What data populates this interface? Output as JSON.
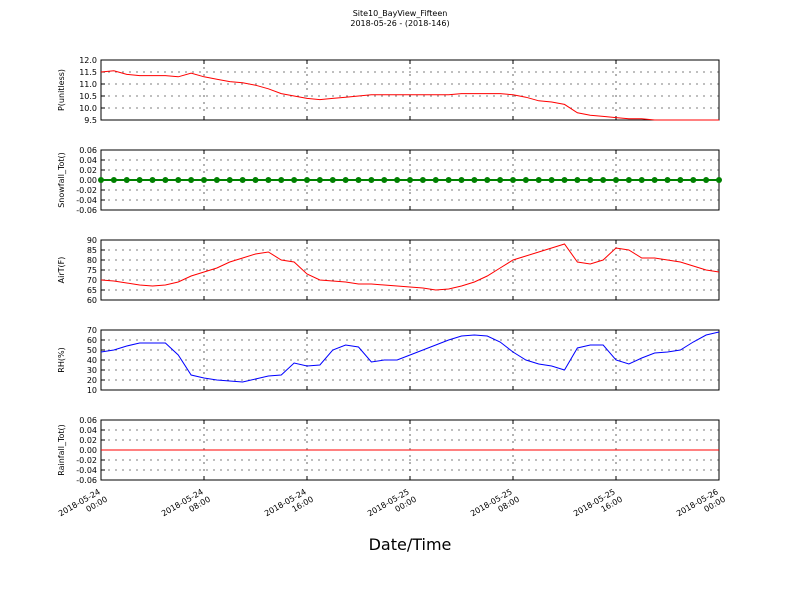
{
  "chart_data": {
    "type": "line",
    "title": "Site10_BayView_Fifteen",
    "subtitle": "2018-05-26 - (2018-146)",
    "xlabel": "Date/Time",
    "grid": true,
    "x": [
      "2018-05-24 00:00",
      "2018-05-24 01:00",
      "2018-05-24 02:00",
      "2018-05-24 03:00",
      "2018-05-24 04:00",
      "2018-05-24 05:00",
      "2018-05-24 06:00",
      "2018-05-24 07:00",
      "2018-05-24 08:00",
      "2018-05-24 09:00",
      "2018-05-24 10:00",
      "2018-05-24 11:00",
      "2018-05-24 12:00",
      "2018-05-24 13:00",
      "2018-05-24 14:00",
      "2018-05-24 15:00",
      "2018-05-24 16:00",
      "2018-05-24 17:00",
      "2018-05-24 18:00",
      "2018-05-24 19:00",
      "2018-05-24 20:00",
      "2018-05-24 21:00",
      "2018-05-24 22:00",
      "2018-05-24 23:00",
      "2018-05-25 00:00",
      "2018-05-25 01:00",
      "2018-05-25 02:00",
      "2018-05-25 03:00",
      "2018-05-25 04:00",
      "2018-05-25 05:00",
      "2018-05-25 06:00",
      "2018-05-25 07:00",
      "2018-05-25 08:00",
      "2018-05-25 09:00",
      "2018-05-25 10:00",
      "2018-05-25 11:00",
      "2018-05-25 12:00",
      "2018-05-25 13:00",
      "2018-05-25 14:00",
      "2018-05-25 15:00",
      "2018-05-25 16:00",
      "2018-05-25 17:00",
      "2018-05-25 18:00",
      "2018-05-25 19:00",
      "2018-05-25 20:00",
      "2018-05-25 21:00",
      "2018-05-25 22:00",
      "2018-05-25 23:00",
      "2018-05-26 00:00"
    ],
    "xlim": [
      "2018-05-24 00:00",
      "2018-05-26 00:00"
    ],
    "xticks": [
      "2018-05-24 00:00",
      "2018-05-24 08:00",
      "2018-05-24 16:00",
      "2018-05-25 00:00",
      "2018-05-25 08:00",
      "2018-05-25 16:00",
      "2018-05-26 00:00"
    ],
    "panels": [
      {
        "ylabel": "P(unitless)",
        "ylim": [
          9.5,
          12.0
        ],
        "yticks": [
          9.5,
          {
            "value": 10,
            "label": "10.0"
          },
          10.5,
          {
            "value": 11,
            "label": "11.0"
          },
          11.5,
          {
            "value": 12,
            "label": "12.0"
          }
        ],
        "series": [
          {
            "color": "#ff0000",
            "values": [
              11.5,
              11.55,
              11.4,
              11.35,
              11.35,
              11.35,
              11.3,
              11.45,
              11.3,
              11.2,
              11.1,
              11.05,
              10.95,
              10.8,
              10.6,
              10.5,
              10.4,
              10.35,
              10.4,
              10.45,
              10.5,
              10.55,
              10.55,
              10.55,
              10.55,
              10.55,
              10.55,
              10.55,
              10.6,
              10.6,
              10.6,
              10.6,
              10.55,
              10.45,
              10.3,
              10.25,
              10.15,
              9.8,
              9.7,
              9.65,
              9.6,
              9.55,
              9.55,
              9.5,
              9.5,
              9.5,
              9.5,
              9.5,
              9.5
            ]
          }
        ]
      },
      {
        "ylabel": "Snowfall_Tot()",
        "ylim": [
          -0.06,
          0.06
        ],
        "yticks": [
          -0.06,
          -0.04,
          -0.02,
          {
            "value": 0,
            "label": "0.00"
          },
          0.02,
          0.04,
          0.06
        ],
        "series": [
          {
            "color": "#008000",
            "markers": true,
            "values": [
              0,
              0,
              0,
              0,
              0,
              0,
              0,
              0,
              0,
              0,
              0,
              0,
              0,
              0,
              0,
              0,
              0,
              0,
              0,
              0,
              0,
              0,
              0,
              0,
              0,
              0,
              0,
              0,
              0,
              0,
              0,
              0,
              0,
              0,
              0,
              0,
              0,
              0,
              0,
              0,
              0,
              0,
              0,
              0,
              0,
              0,
              0,
              0,
              0
            ]
          }
        ]
      },
      {
        "ylabel": "AirT(F)",
        "ylim": [
          60,
          90
        ],
        "yticks": [
          60,
          65,
          70,
          75,
          80,
          85,
          90
        ],
        "series": [
          {
            "color": "#ff0000",
            "values": [
              70,
              69.5,
              68.5,
              67.5,
              67,
              67.5,
              69,
              72,
              74,
              76,
              79,
              81,
              83,
              84,
              80,
              79,
              73,
              70,
              69.5,
              69,
              68,
              68,
              67.5,
              67,
              66.5,
              66,
              65,
              65.5,
              67,
              69,
              72,
              76,
              80,
              82,
              84,
              86,
              88,
              79,
              78,
              80,
              86,
              85,
              81,
              81,
              80,
              79,
              77,
              75,
              74
            ]
          }
        ]
      },
      {
        "ylabel": "RH(%)",
        "ylim": [
          10,
          70
        ],
        "yticks": [
          10,
          20,
          30,
          40,
          50,
          60,
          70
        ],
        "series": [
          {
            "color": "#0000ff",
            "values": [
              48,
              50,
              54,
              57,
              57,
              57,
              45,
              25,
              22,
              20,
              19,
              18,
              21,
              24,
              25,
              37,
              34,
              35,
              50,
              55,
              53,
              38,
              40,
              40,
              45,
              50,
              55,
              60,
              64,
              65,
              64,
              58,
              48,
              40,
              36,
              34,
              30,
              52,
              55,
              55,
              40,
              36,
              42,
              47,
              48,
              50,
              58,
              65,
              68
            ]
          }
        ]
      },
      {
        "ylabel": "Rainfall_Tot()",
        "ylim": [
          -0.06,
          0.06
        ],
        "yticks": [
          -0.06,
          -0.04,
          -0.02,
          {
            "value": 0,
            "label": "0.00"
          },
          0.02,
          0.04,
          0.06
        ],
        "series": [
          {
            "color": "#ff0000",
            "values": [
              0,
              0,
              0,
              0,
              0,
              0,
              0,
              0,
              0,
              0,
              0,
              0,
              0,
              0,
              0,
              0,
              0,
              0,
              0,
              0,
              0,
              0,
              0,
              0,
              0,
              0,
              0,
              0,
              0,
              0,
              0,
              0,
              0,
              0,
              0,
              0,
              0,
              0,
              0,
              0,
              0,
              0,
              0,
              0,
              0,
              0,
              0,
              0,
              0
            ]
          }
        ]
      }
    ]
  }
}
